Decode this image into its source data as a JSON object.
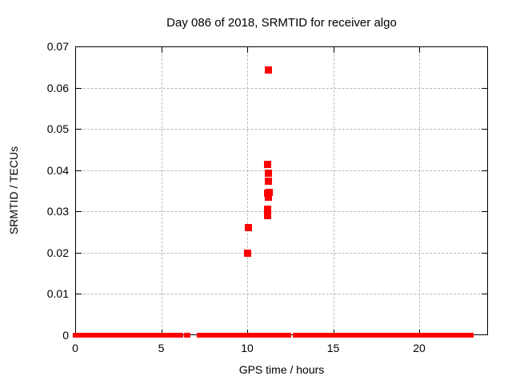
{
  "chart_data": {
    "type": "scatter",
    "title": "Day 086 of 2018, SRMTID for receiver algo",
    "xlabel": "GPS time / hours",
    "ylabel": "SRMTID / TECUs",
    "xlim": [
      0,
      24
    ],
    "ylim": [
      0,
      0.07
    ],
    "xticks": [
      0,
      5,
      10,
      15,
      20
    ],
    "xtick_labels": [
      "0",
      "5",
      "10",
      "15",
      "20"
    ],
    "yticks": [
      0,
      0.01,
      0.02,
      0.03,
      0.04,
      0.05,
      0.06,
      0.07
    ],
    "ytick_labels": [
      "0",
      "0.01",
      "0.02",
      "0.03",
      "0.04",
      "0.05",
      "0.06",
      "0.07"
    ],
    "grid": true,
    "legend_position": "none",
    "marker": "plus",
    "marker_color": "#ff0000",
    "grid_color": "#b9b9b9",
    "axis_color": "#000000",
    "background_color": "#ffffff",
    "points": [
      [
        10.0,
        0.0199
      ],
      [
        10.05,
        0.026
      ],
      [
        11.2,
        0.0289
      ],
      [
        11.2,
        0.0306
      ],
      [
        11.25,
        0.0334
      ],
      [
        11.2,
        0.0345
      ],
      [
        11.3,
        0.0346
      ],
      [
        11.25,
        0.0373
      ],
      [
        11.25,
        0.0392
      ],
      [
        11.2,
        0.0414
      ],
      [
        11.25,
        0.0642
      ]
    ],
    "baseline_y": 0,
    "baseline_segments": [
      [
        0.0,
        0.1
      ],
      [
        0.2,
        0.5
      ],
      [
        0.6,
        1.0
      ],
      [
        1.1,
        1.6
      ],
      [
        1.8,
        3.45
      ],
      [
        3.55,
        3.95
      ],
      [
        4.05,
        4.4
      ],
      [
        4.5,
        5.45
      ],
      [
        5.55,
        5.75
      ],
      [
        6.0,
        6.1
      ],
      [
        6.45,
        6.5
      ],
      [
        7.2,
        9.8
      ],
      [
        9.9,
        10.18
      ],
      [
        10.3,
        10.5
      ],
      [
        10.85,
        11.55
      ],
      [
        11.7,
        12.35
      ],
      [
        12.8,
        13.85
      ],
      [
        14.0,
        14.38
      ],
      [
        14.52,
        15.72
      ],
      [
        15.84,
        16.85
      ],
      [
        16.95,
        19.4
      ],
      [
        19.55,
        20.1
      ],
      [
        20.25,
        20.8
      ],
      [
        20.95,
        23.0
      ]
    ]
  }
}
